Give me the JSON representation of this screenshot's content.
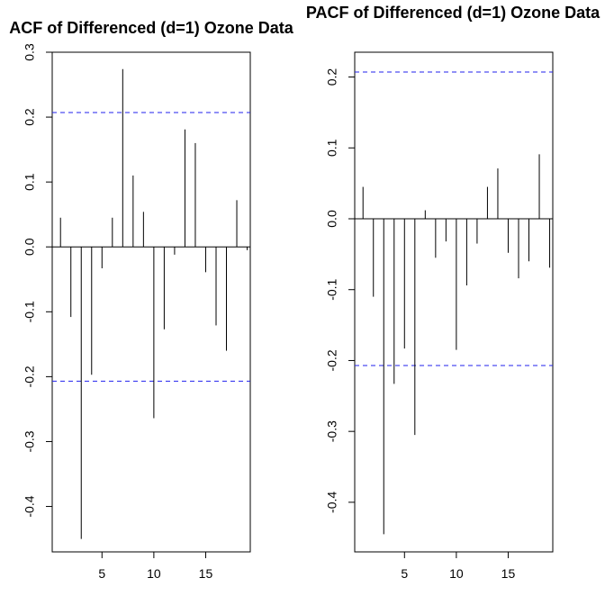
{
  "chart_data": [
    {
      "type": "bar",
      "title": "ACF of Differenced (d=1) Ozone Data",
      "title_visible_text": "ACF of Differenced (d=1) Ozone Data",
      "xlim": [
        0.2,
        19.3
      ],
      "ylim": [
        -0.47,
        0.3
      ],
      "x_ticks": [
        5,
        10,
        15
      ],
      "y_ticks": [
        -0.4,
        -0.3,
        -0.2,
        -0.1,
        0.0,
        0.1,
        0.2,
        0.3
      ],
      "y_tick_labels": [
        "-0.4",
        "-0.3",
        "-0.2",
        "-0.1",
        "0.0",
        "0.1",
        "0.2",
        "0.3"
      ],
      "ci_bounds": [
        0.207,
        -0.207
      ],
      "ci_color": "#2222ee",
      "x": [
        1,
        2,
        3,
        4,
        5,
        6,
        7,
        8,
        9,
        10,
        11,
        12,
        13,
        14,
        15,
        16,
        17,
        18,
        19
      ],
      "values": [
        0.045,
        -0.108,
        -0.45,
        -0.197,
        -0.033,
        0.045,
        0.274,
        0.11,
        0.054,
        -0.264,
        -0.127,
        -0.012,
        0.181,
        0.16,
        -0.039,
        -0.121,
        -0.16,
        0.072,
        -0.005
      ]
    },
    {
      "type": "bar",
      "title": "PACF of Differenced (d=1) Ozone Data",
      "title_visible_text": "PACF of Differenced (d=1) Ozone Data",
      "xlim": [
        0.2,
        19.3
      ],
      "ylim": [
        -0.47,
        0.235
      ],
      "x_ticks": [
        5,
        10,
        15
      ],
      "y_ticks": [
        -0.4,
        -0.3,
        -0.2,
        -0.1,
        0.0,
        0.1,
        0.2
      ],
      "y_tick_labels": [
        "-0.4",
        "-0.3",
        "-0.2",
        "-0.1",
        "0.0",
        "0.1",
        "0.2"
      ],
      "ci_bounds": [
        0.207,
        -0.207
      ],
      "ci_color": "#2222ee",
      "x": [
        1,
        2,
        3,
        4,
        5,
        6,
        7,
        8,
        9,
        10,
        11,
        12,
        13,
        14,
        15,
        16,
        17,
        18,
        19
      ],
      "values": [
        0.045,
        -0.11,
        -0.445,
        -0.233,
        -0.183,
        -0.305,
        0.012,
        -0.055,
        -0.032,
        -0.185,
        -0.094,
        -0.035,
        0.045,
        0.071,
        -0.048,
        -0.084,
        -0.06,
        0.091,
        -0.069
      ]
    }
  ]
}
